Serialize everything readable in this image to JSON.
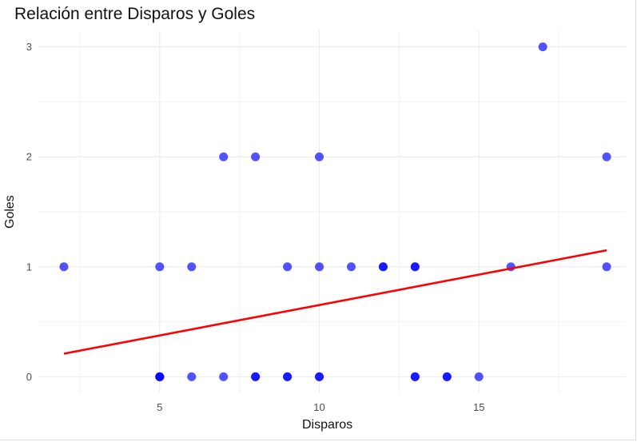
{
  "chart_data": {
    "type": "scatter",
    "title": "Relación entre Disparos y Goles",
    "xlabel": "Disparos",
    "ylabel": "Goles",
    "xlim": [
      1.2,
      19.6
    ],
    "ylim": [
      -0.15,
      3.15
    ],
    "x_ticks": [
      5,
      10,
      15
    ],
    "y_ticks": [
      0,
      1,
      2,
      3
    ],
    "grid": true,
    "point_color": "#0000ff",
    "line_color": "#ff0000",
    "points": [
      {
        "x": 2,
        "y": 1
      },
      {
        "x": 5,
        "y": 1
      },
      {
        "x": 6,
        "y": 1
      },
      {
        "x": 9,
        "y": 1
      },
      {
        "x": 10,
        "y": 1
      },
      {
        "x": 11,
        "y": 1
      },
      {
        "x": 12,
        "y": 1
      },
      {
        "x": 12,
        "y": 1
      },
      {
        "x": 13,
        "y": 1
      },
      {
        "x": 13,
        "y": 1
      },
      {
        "x": 16,
        "y": 1
      },
      {
        "x": 19,
        "y": 1
      },
      {
        "x": 7,
        "y": 2
      },
      {
        "x": 8,
        "y": 2
      },
      {
        "x": 10,
        "y": 2
      },
      {
        "x": 19,
        "y": 2
      },
      {
        "x": 17,
        "y": 3
      },
      {
        "x": 5,
        "y": 0
      },
      {
        "x": 5,
        "y": 0
      },
      {
        "x": 5,
        "y": 0
      },
      {
        "x": 6,
        "y": 0
      },
      {
        "x": 7,
        "y": 0
      },
      {
        "x": 8,
        "y": 0
      },
      {
        "x": 8,
        "y": 0
      },
      {
        "x": 9,
        "y": 0
      },
      {
        "x": 9,
        "y": 0
      },
      {
        "x": 10,
        "y": 0
      },
      {
        "x": 10,
        "y": 0
      },
      {
        "x": 13,
        "y": 0
      },
      {
        "x": 13,
        "y": 0
      },
      {
        "x": 14,
        "y": 0
      },
      {
        "x": 14,
        "y": 0
      },
      {
        "x": 15,
        "y": 0
      }
    ],
    "regression_line": {
      "x": [
        2,
        19
      ],
      "y": [
        0.21,
        1.15
      ]
    }
  }
}
